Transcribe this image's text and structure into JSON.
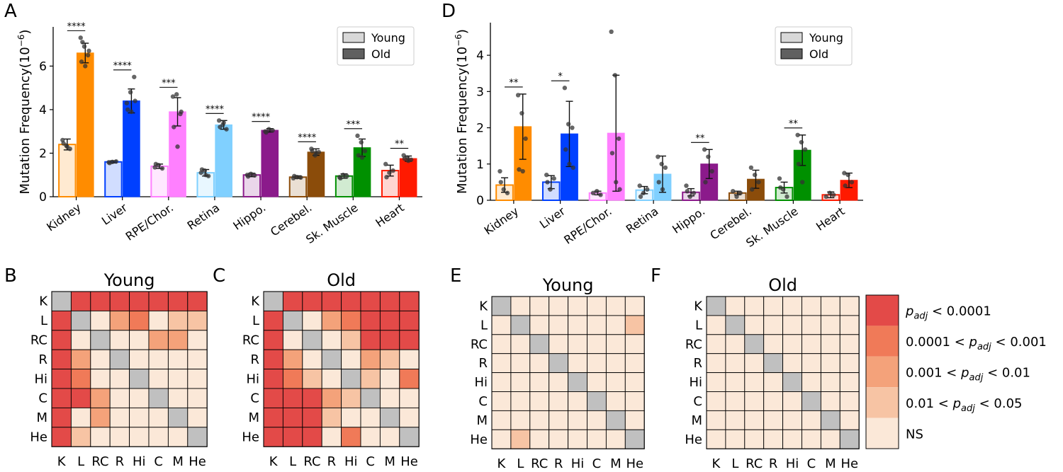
{
  "colors": {
    "Kidney": "#ff8c00",
    "Liver": "#0040ff",
    "RPE/Chor.": "#ff80ff",
    "Retina": "#80d0ff",
    "Hippo.": "#8b1a8b",
    "Cerebel.": "#8b4c0a",
    "Sk. Muscle": "#009000",
    "Heart": "#ff1a00",
    "sig4": "#e34a48",
    "sig3": "#f07a58",
    "sig2": "#f4a27a",
    "sig1": "#f7c4a4",
    "ns": "#fbe8d8",
    "diag": "#c0c0c0"
  },
  "chart_data": [
    {
      "panel": "A",
      "type": "bar",
      "ylabel": "Mutation Frequency(10",
      "ylabel_exp": "−6",
      "ylabel_close": ")",
      "ylim": [
        0,
        7.8
      ],
      "yticks": [
        0,
        2,
        4,
        6
      ],
      "legend": [
        "Young",
        "Old"
      ],
      "legend_position": "top-right",
      "categories": [
        "Kidney",
        "Liver",
        "RPE/Chor.",
        "Retina",
        "Hippo.",
        "Cerebel.",
        "Sk. Muscle",
        "Heart"
      ],
      "series": [
        {
          "name": "Young",
          "values": [
            2.4,
            1.6,
            1.4,
            1.1,
            1.0,
            0.9,
            0.95,
            1.2
          ],
          "errors": [
            0.25,
            0.05,
            0.1,
            0.15,
            0.08,
            0.06,
            0.1,
            0.25
          ]
        },
        {
          "name": "Old",
          "values": [
            6.6,
            4.4,
            3.9,
            3.3,
            3.05,
            2.05,
            2.25,
            1.75
          ],
          "errors": [
            0.45,
            0.55,
            0.65,
            0.2,
            0.08,
            0.15,
            0.4,
            0.12
          ]
        }
      ],
      "points": {
        "Young": [
          [
            2.6,
            2.35,
            2.2,
            2.45,
            2.3
          ],
          [
            1.58,
            1.6,
            1.62,
            1.55
          ],
          [
            1.35,
            1.45,
            1.3,
            1.5
          ],
          [
            1.1,
            1.2,
            0.95,
            1.25,
            1.0
          ],
          [
            1.0,
            1.05,
            0.98,
            0.93
          ],
          [
            0.85,
            0.9,
            0.88,
            0.95
          ],
          [
            0.9,
            1.0,
            0.95,
            0.85
          ],
          [
            1.5,
            1.1,
            1.2,
            0.9
          ]
        ],
        "Old": [
          [
            7.3,
            6.9,
            6.5,
            6.2,
            6.0,
            6.7,
            7.1
          ],
          [
            4.3,
            4.8,
            5.5,
            4.0,
            3.9,
            4.4
          ],
          [
            4.6,
            4.7,
            3.8,
            3.2,
            2.3,
            3.9
          ],
          [
            3.5,
            3.3,
            3.1,
            3.2,
            3.4
          ],
          [
            3.0,
            3.1,
            3.05,
            2.95
          ],
          [
            2.2,
            1.9,
            2.05,
            2.1,
            2.0
          ],
          [
            2.8,
            2.5,
            2.1,
            1.9,
            1.8
          ],
          [
            1.9,
            1.8,
            1.7,
            1.75,
            1.65
          ]
        ]
      },
      "significance": [
        "****",
        "****",
        "***",
        "****",
        "****",
        "****",
        "***",
        "**"
      ]
    },
    {
      "panel": "D",
      "type": "bar",
      "ylabel": "Mutation Frequency(10",
      "ylabel_exp": "−6",
      "ylabel_close": ")",
      "ylim": [
        0,
        4.9
      ],
      "yticks": [
        0,
        1,
        2,
        3,
        4
      ],
      "legend": [
        "Young",
        "Old"
      ],
      "legend_position": "top-right",
      "categories": [
        "Kidney",
        "Liver",
        "RPE/Chor.",
        "Retina",
        "Hippo.",
        "Cerebel.",
        "Sk. Muscle",
        "Heart"
      ],
      "series": [
        {
          "name": "Young",
          "values": [
            0.42,
            0.5,
            0.2,
            0.28,
            0.22,
            0.2,
            0.35,
            0.15
          ],
          "errors": [
            0.2,
            0.18,
            0.05,
            0.1,
            0.1,
            0.05,
            0.15,
            0.08
          ]
        },
        {
          "name": "Old",
          "values": [
            2.03,
            1.83,
            1.85,
            0.72,
            1.0,
            0.58,
            1.38,
            0.55
          ],
          "errors": [
            0.9,
            0.9,
            1.6,
            0.5,
            0.4,
            0.25,
            0.42,
            0.2
          ]
        }
      ],
      "points": {
        "Young": [
          [
            0.8,
            0.3,
            0.2,
            0.5
          ],
          [
            0.7,
            0.3,
            0.6,
            0.5
          ],
          [
            0.2,
            0.25,
            0.15
          ],
          [
            0.4,
            0.2,
            0.3,
            0.1
          ],
          [
            0.4,
            0.1,
            0.2,
            0.25
          ],
          [
            0.25,
            0.1,
            0.2
          ],
          [
            0.6,
            0.3,
            0.1,
            0.35
          ],
          [
            0.1,
            0.2,
            0.15
          ]
        ],
        "Old": [
          [
            2.9,
            2.4,
            1.7,
            0.85,
            0.8
          ],
          [
            3.1,
            2.1,
            2.0,
            1.4,
            1.0,
            0.9
          ],
          [
            4.65,
            3.45,
            1.7,
            1.3,
            0.5,
            0.3
          ],
          [
            1.2,
            1.0,
            0.9,
            0.5,
            0.3
          ],
          [
            1.4,
            1.2,
            0.8,
            0.5
          ],
          [
            0.9,
            0.7,
            0.5,
            0.3
          ],
          [
            1.8,
            1.6,
            1.4,
            1.0,
            0.5
          ],
          [
            0.75,
            0.7,
            0.5,
            0.4
          ]
        ]
      },
      "significance": [
        "**",
        "*",
        "",
        "",
        "**",
        "",
        "**",
        ""
      ]
    }
  ],
  "heatmaps": {
    "labels": [
      "K",
      "L",
      "RC",
      "R",
      "Hi",
      "C",
      "M",
      "He"
    ],
    "legend": [
      {
        "key": "sig4",
        "text": "p_adj < 0.0001",
        "prefix": "",
        "suffix": " < 0.0001"
      },
      {
        "key": "sig3",
        "text": "0.0001 < p_adj < 0.001",
        "prefix": "0.0001 < ",
        "suffix": " < 0.001"
      },
      {
        "key": "sig2",
        "text": "0.001 < p_adj < 0.01",
        "prefix": "0.001 < ",
        "suffix": " < 0.01"
      },
      {
        "key": "sig1",
        "text": "0.01 < p_adj < 0.05",
        "prefix": "0.01 < ",
        "suffix": " < 0.05"
      },
      {
        "key": "ns",
        "text": "NS",
        "prefix": "",
        "suffix": ""
      }
    ],
    "panels": [
      {
        "panel": "B",
        "title": "Young",
        "matrix": [
          [
            -1,
            4,
            4,
            4,
            4,
            4,
            4,
            4
          ],
          [
            4,
            -1,
            0,
            2,
            3,
            0,
            1,
            1
          ],
          [
            4,
            0,
            -1,
            0,
            0,
            2,
            2,
            0
          ],
          [
            4,
            2,
            0,
            -1,
            0,
            0,
            0,
            0
          ],
          [
            4,
            3,
            0,
            0,
            -1,
            0,
            0,
            0
          ],
          [
            4,
            4,
            2,
            0,
            0,
            -1,
            0,
            0
          ],
          [
            4,
            0,
            2,
            0,
            0,
            0,
            -1,
            0
          ],
          [
            4,
            1,
            0,
            0,
            0,
            0,
            0,
            -1
          ]
        ]
      },
      {
        "panel": "C",
        "title": "Old",
        "matrix": [
          [
            -1,
            4,
            4,
            4,
            4,
            4,
            4,
            4
          ],
          [
            4,
            -1,
            0,
            2,
            3,
            4,
            4,
            4
          ],
          [
            4,
            0,
            -1,
            0,
            1,
            4,
            4,
            4
          ],
          [
            4,
            2,
            0,
            -1,
            0,
            2,
            1,
            0
          ],
          [
            4,
            3,
            1,
            0,
            -1,
            1,
            0,
            3
          ],
          [
            4,
            4,
            4,
            2,
            1,
            -1,
            0,
            0
          ],
          [
            4,
            4,
            4,
            1,
            0,
            0,
            -1,
            0
          ],
          [
            4,
            4,
            4,
            0,
            3,
            0,
            0,
            -1
          ]
        ]
      },
      {
        "panel": "E",
        "title": "Young",
        "matrix": [
          [
            -1,
            0,
            0,
            0,
            0,
            0,
            0,
            0
          ],
          [
            0,
            -1,
            0,
            0,
            0,
            0,
            0,
            1
          ],
          [
            0,
            0,
            -1,
            0,
            0,
            0,
            0,
            0
          ],
          [
            0,
            0,
            0,
            -1,
            0,
            0,
            0,
            0
          ],
          [
            0,
            0,
            0,
            0,
            -1,
            0,
            0,
            0
          ],
          [
            0,
            0,
            0,
            0,
            0,
            -1,
            0,
            0
          ],
          [
            0,
            0,
            0,
            0,
            0,
            0,
            -1,
            0
          ],
          [
            0,
            1,
            0,
            0,
            0,
            0,
            0,
            -1
          ]
        ]
      },
      {
        "panel": "F",
        "title": "Old",
        "matrix": [
          [
            -1,
            0,
            0,
            0,
            0,
            0,
            0,
            0
          ],
          [
            0,
            -1,
            0,
            0,
            0,
            0,
            0,
            0
          ],
          [
            0,
            0,
            -1,
            0,
            0,
            0,
            0,
            0
          ],
          [
            0,
            0,
            0,
            -1,
            0,
            0,
            0,
            0
          ],
          [
            0,
            0,
            0,
            0,
            -1,
            0,
            0,
            0
          ],
          [
            0,
            0,
            0,
            0,
            0,
            -1,
            0,
            0
          ],
          [
            0,
            0,
            0,
            0,
            0,
            0,
            -1,
            0
          ],
          [
            0,
            0,
            0,
            0,
            0,
            0,
            0,
            -1
          ]
        ]
      }
    ]
  }
}
